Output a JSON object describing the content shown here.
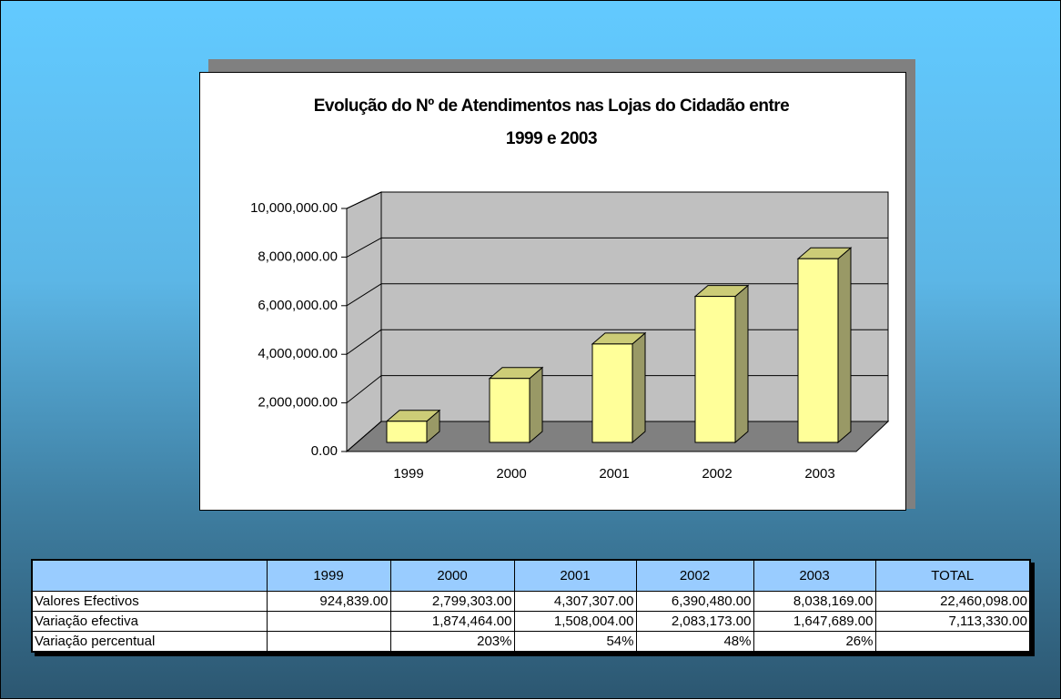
{
  "chart_data": {
    "type": "bar",
    "title": "Evolução do Nº de Atendimentos nas Lojas do Cidadão entre 1999 e 2003",
    "categories": [
      "1999",
      "2000",
      "2001",
      "2002",
      "2003"
    ],
    "values": [
      924839,
      2799303,
      4307307,
      6390480,
      8038169
    ],
    "color": "#ffff99",
    "ylim": [
      0,
      10000000
    ],
    "yticks": [
      {
        "value": 0,
        "label": "0.00"
      },
      {
        "value": 2000000,
        "label": "2,000,000.00"
      },
      {
        "value": 4000000,
        "label": "4,000,000.00"
      },
      {
        "value": 6000000,
        "label": "6,000,000.00"
      },
      {
        "value": 8000000,
        "label": "8,000,000.00"
      },
      {
        "value": 10000000,
        "label": "10,000,000.00"
      }
    ],
    "grid": true
  },
  "table": {
    "header": [
      null,
      "1999",
      "2000",
      "2001",
      "2002",
      "2003",
      "TOTAL"
    ],
    "rows": [
      [
        "Valores Efectivos",
        "924,839.00",
        "2,799,303.00",
        "4,307,307.00",
        "6,390,480.00",
        "8,038,169.00",
        "22,460,098.00"
      ],
      [
        "Variação efectiva",
        null,
        "1,874,464.00",
        "1,508,004.00",
        "2,083,173.00",
        "1,647,689.00",
        "7,113,330.00"
      ],
      [
        "Variação percentual",
        null,
        "203%",
        "54%",
        "48%",
        "26%",
        null
      ]
    ]
  }
}
